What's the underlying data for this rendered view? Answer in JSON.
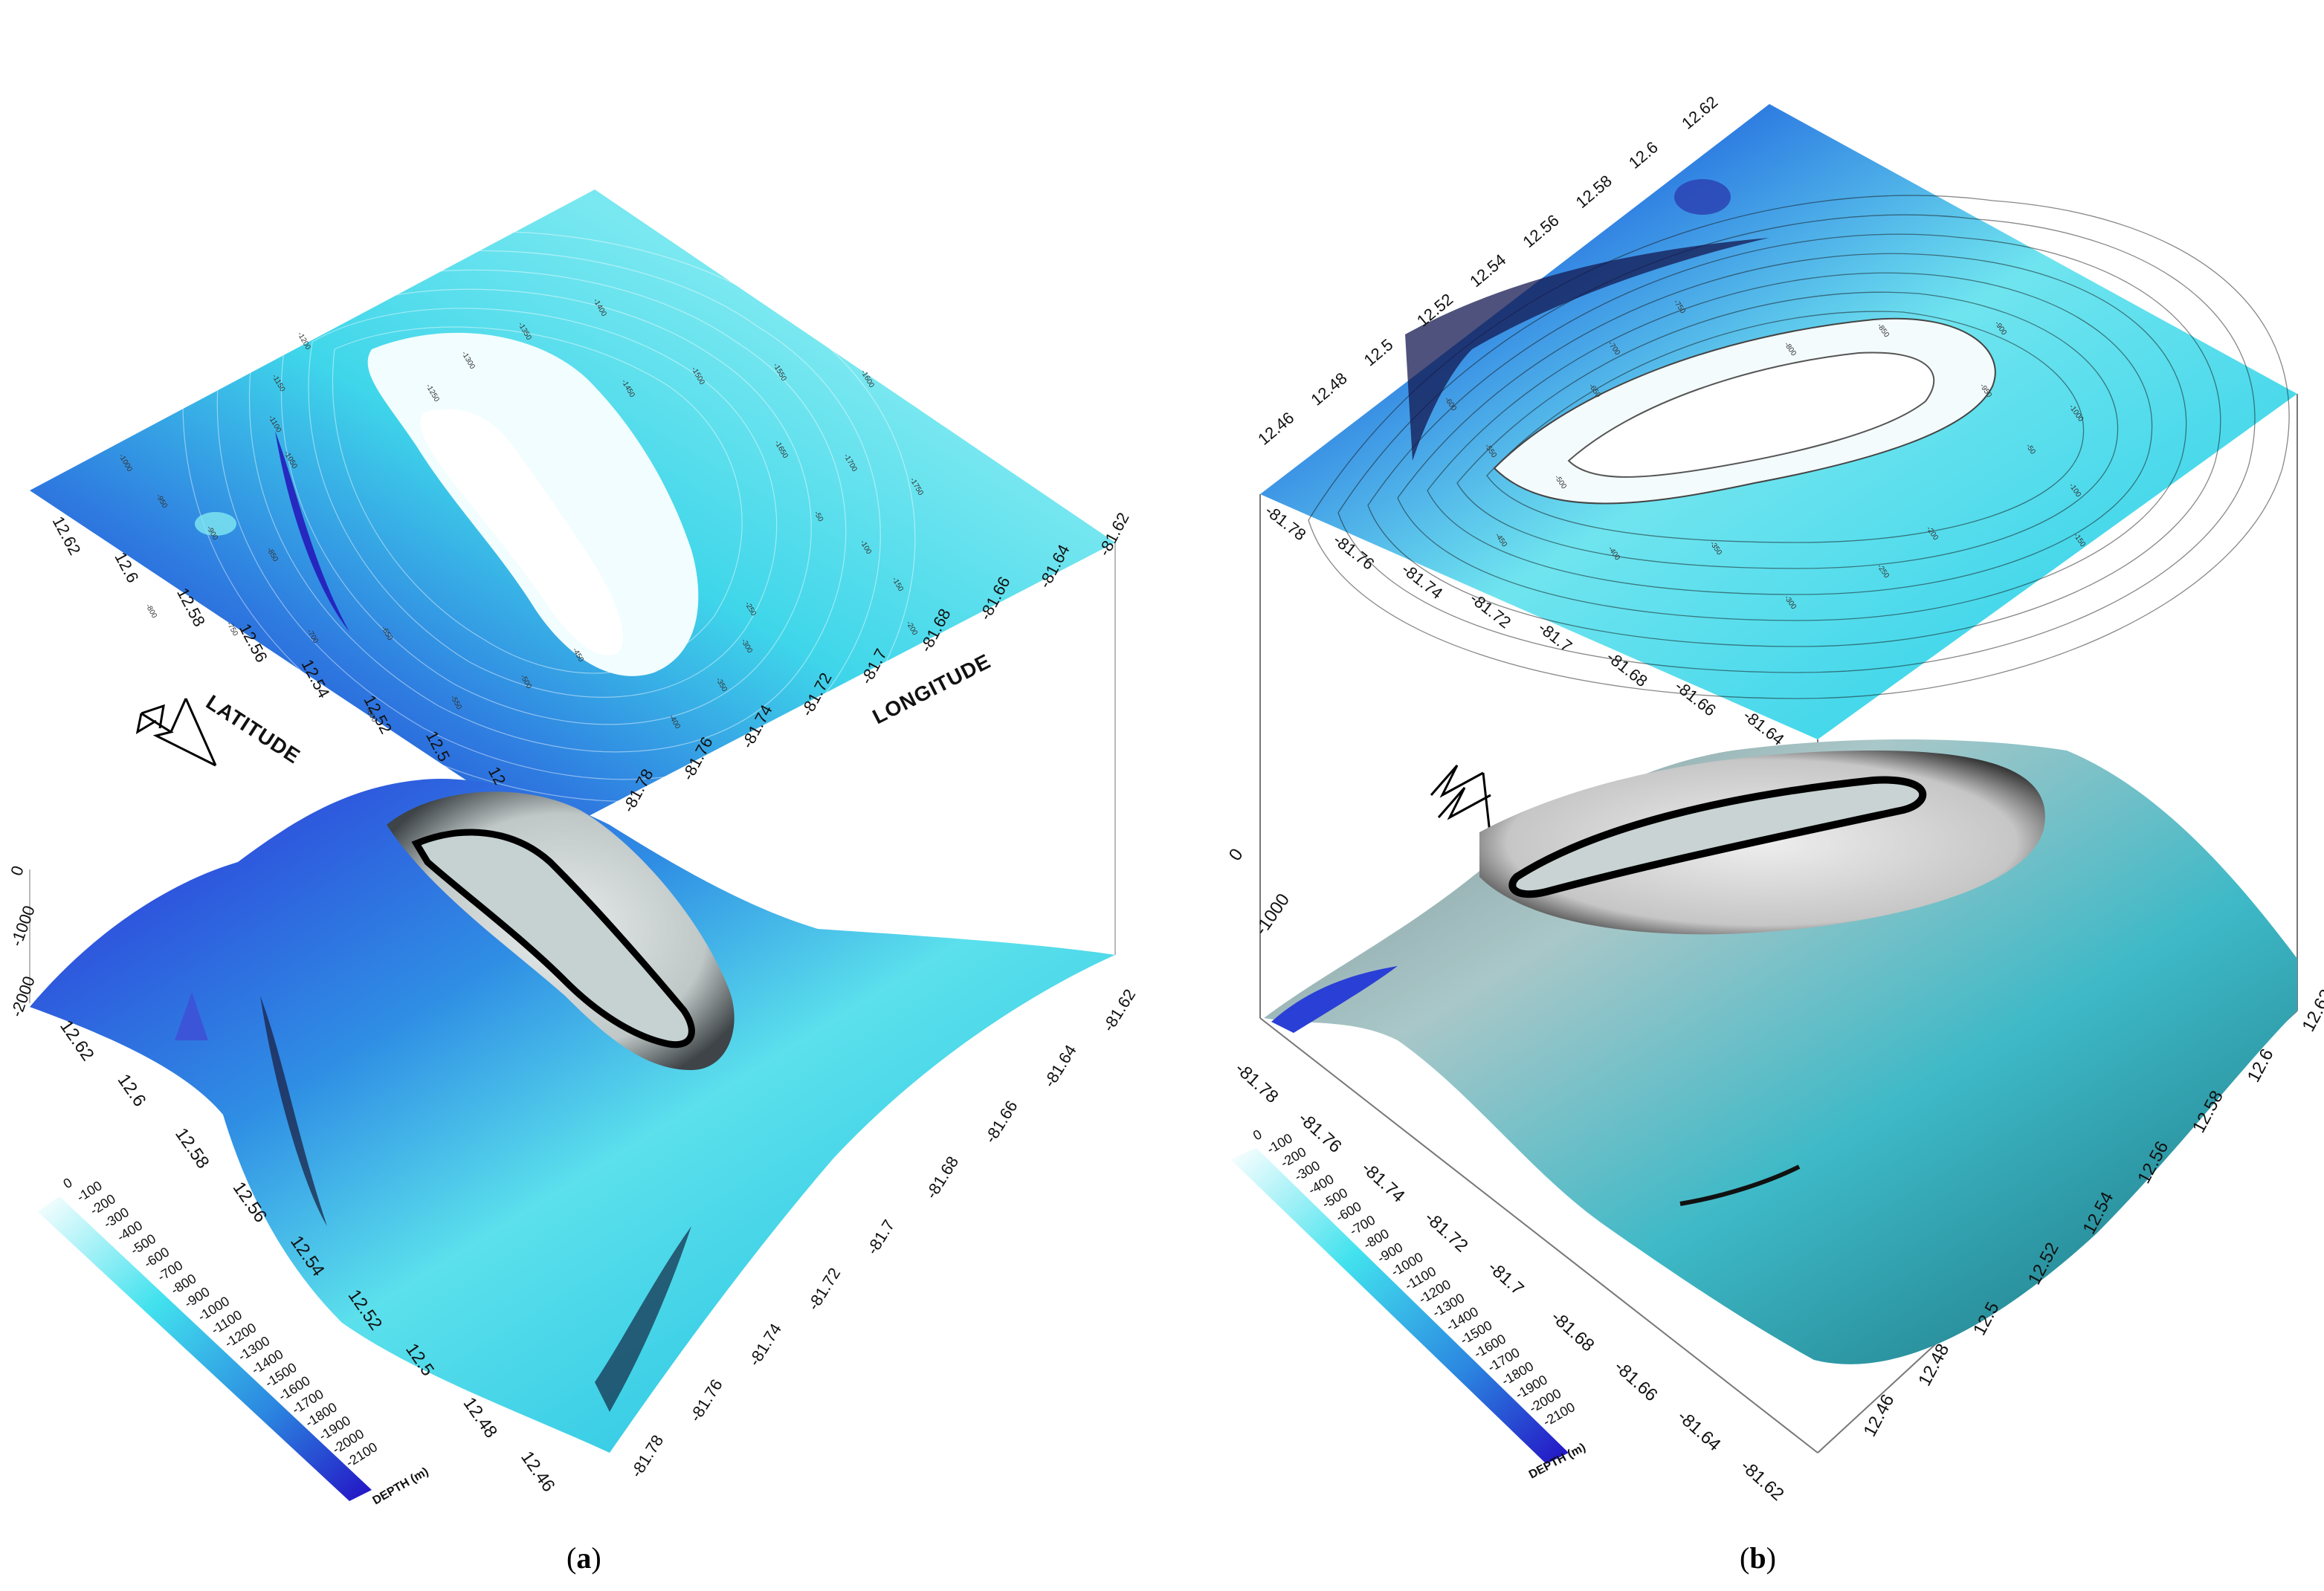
{
  "panels": [
    {
      "id": "a",
      "caption_letter": "a",
      "latitude_axis_title": "LATITUDE",
      "longitude_axis_title": "LONGITUDE",
      "map_latitude_ticks": [
        "12.62",
        "12.6",
        "12.58",
        "12.56",
        "12.54",
        "12.52",
        "12.5",
        "12.48",
        "12.46"
      ],
      "map_longitude_ticks": [
        "-81.78",
        "-81.76",
        "-81.74",
        "-81.72",
        "-81.7",
        "-81.68",
        "-81.66",
        "-81.64",
        "-81.62"
      ],
      "surface_latitude_ticks": [
        "12.62",
        "12.6",
        "12.58",
        "12.56",
        "12.54",
        "12.52",
        "12.5",
        "12.48",
        "12.46"
      ],
      "surface_longitude_ticks": [
        "-81.78",
        "-81.76",
        "-81.74",
        "-81.72",
        "-81.7",
        "-81.68",
        "-81.66",
        "-81.64",
        "-81.62"
      ],
      "vertical_ticks": [
        "0",
        "-1000",
        "-2000"
      ],
      "legend_values": [
        "0",
        "-100",
        "-200",
        "-300",
        "-400",
        "-500",
        "-600",
        "-700",
        "-800",
        "-900",
        "-1000",
        "-1100",
        "-1200",
        "-1300",
        "-1400",
        "-1500",
        "-1600",
        "-1700",
        "-1800",
        "-1900",
        "-2000",
        "-2100"
      ],
      "legend_title": "DEPTH (m)",
      "contour_labels": [
        "-50",
        "-100",
        "-150",
        "-200",
        "-250",
        "-300",
        "-350",
        "-400",
        "-450",
        "-500",
        "-550",
        "-600",
        "-650",
        "-700",
        "-750",
        "-800",
        "-850",
        "-900",
        "-950",
        "-1000",
        "-1050",
        "-1100",
        "-1150",
        "-1200",
        "-1250",
        "-1300",
        "-1350",
        "-1400",
        "-1450",
        "-1500",
        "-1550",
        "-1600",
        "-1650",
        "-1700",
        "-1750"
      ]
    },
    {
      "id": "b",
      "caption_letter": "b",
      "map_latitude_ticks": [
        "12.62",
        "12.6",
        "12.58",
        "12.56",
        "12.54",
        "12.52",
        "12.5",
        "12.48",
        "12.46"
      ],
      "map_longitude_ticks": [
        "-81.78",
        "-81.76",
        "-81.74",
        "-81.72",
        "-81.7",
        "-81.68",
        "-81.66",
        "-81.64",
        "-81.62"
      ],
      "surface_latitude_ticks": [
        "12.46",
        "12.48",
        "12.5",
        "12.52",
        "12.54",
        "12.56",
        "12.58",
        "12.6",
        "12.62"
      ],
      "surface_longitude_ticks": [
        "-81.78",
        "-81.76",
        "-81.74",
        "-81.72",
        "-81.7",
        "-81.68",
        "-81.66",
        "-81.64",
        "-81.62"
      ],
      "vertical_ticks": [
        "0",
        "-1000"
      ],
      "legend_values": [
        "0",
        "-100",
        "-200",
        "-300",
        "-400",
        "-500",
        "-600",
        "-700",
        "-800",
        "-900",
        "-1000",
        "-1100",
        "-1200",
        "-1300",
        "-1400",
        "-1500",
        "-1600",
        "-1700",
        "-1800",
        "-1900",
        "-2000",
        "-2100"
      ],
      "legend_title": "DEPTH (m)",
      "contour_labels": [
        "-50",
        "-100",
        "-150",
        "-200",
        "-250",
        "-300",
        "-350",
        "-400",
        "-450",
        "-500",
        "-550",
        "-600",
        "-650",
        "-700",
        "-750",
        "-800",
        "-850",
        "-900",
        "-950",
        "-1000"
      ]
    }
  ],
  "colors": {
    "shallow": "#ffffff",
    "mid": "#33e0ea",
    "deep": "#2a14c8",
    "island": "#ffffff",
    "shelf_grey": "#c8d0d0",
    "coast_line": "#000000"
  },
  "icons": [
    "north-arrow-icon",
    "north-arrow-icon"
  ]
}
